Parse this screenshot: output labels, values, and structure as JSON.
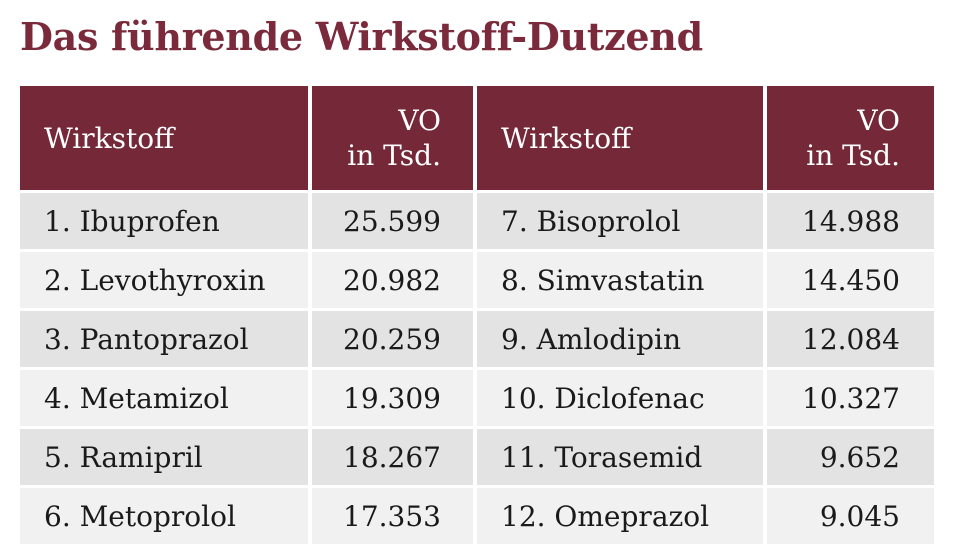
{
  "title": "Das führende Wirkstoff-Dutzend",
  "header": {
    "col_name": "Wirkstoff",
    "col_vo_line1": "VO",
    "col_vo_line2": "in Tsd."
  },
  "rows": [
    {
      "left_name": "1. Ibuprofen",
      "left_vo": "25.599",
      "right_name": "7. Bisoprolol",
      "right_vo": "14.988"
    },
    {
      "left_name": "2. Levothyroxin",
      "left_vo": "20.982",
      "right_name": "8. Simvastatin",
      "right_vo": "14.450"
    },
    {
      "left_name": "3. Pantoprazol",
      "left_vo": "20.259",
      "right_name": "9. Amlodipin",
      "right_vo": "12.084"
    },
    {
      "left_name": "4. Metamizol",
      "left_vo": "19.309",
      "right_name": "10. Diclofenac",
      "right_vo": "10.327"
    },
    {
      "left_name": "5. Ramipril",
      "left_vo": "18.267",
      "right_name": "11. Torasemid",
      "right_vo": "9.652"
    },
    {
      "left_name": "6. Metoprolol",
      "left_vo": "17.353",
      "right_name": "12. Omeprazol",
      "right_vo": "9.045"
    }
  ],
  "colors": {
    "title": "#7a2a3b",
    "header_bg": "#742838",
    "row_dark": "#e3e3e3",
    "row_light": "#f1f1f1"
  }
}
